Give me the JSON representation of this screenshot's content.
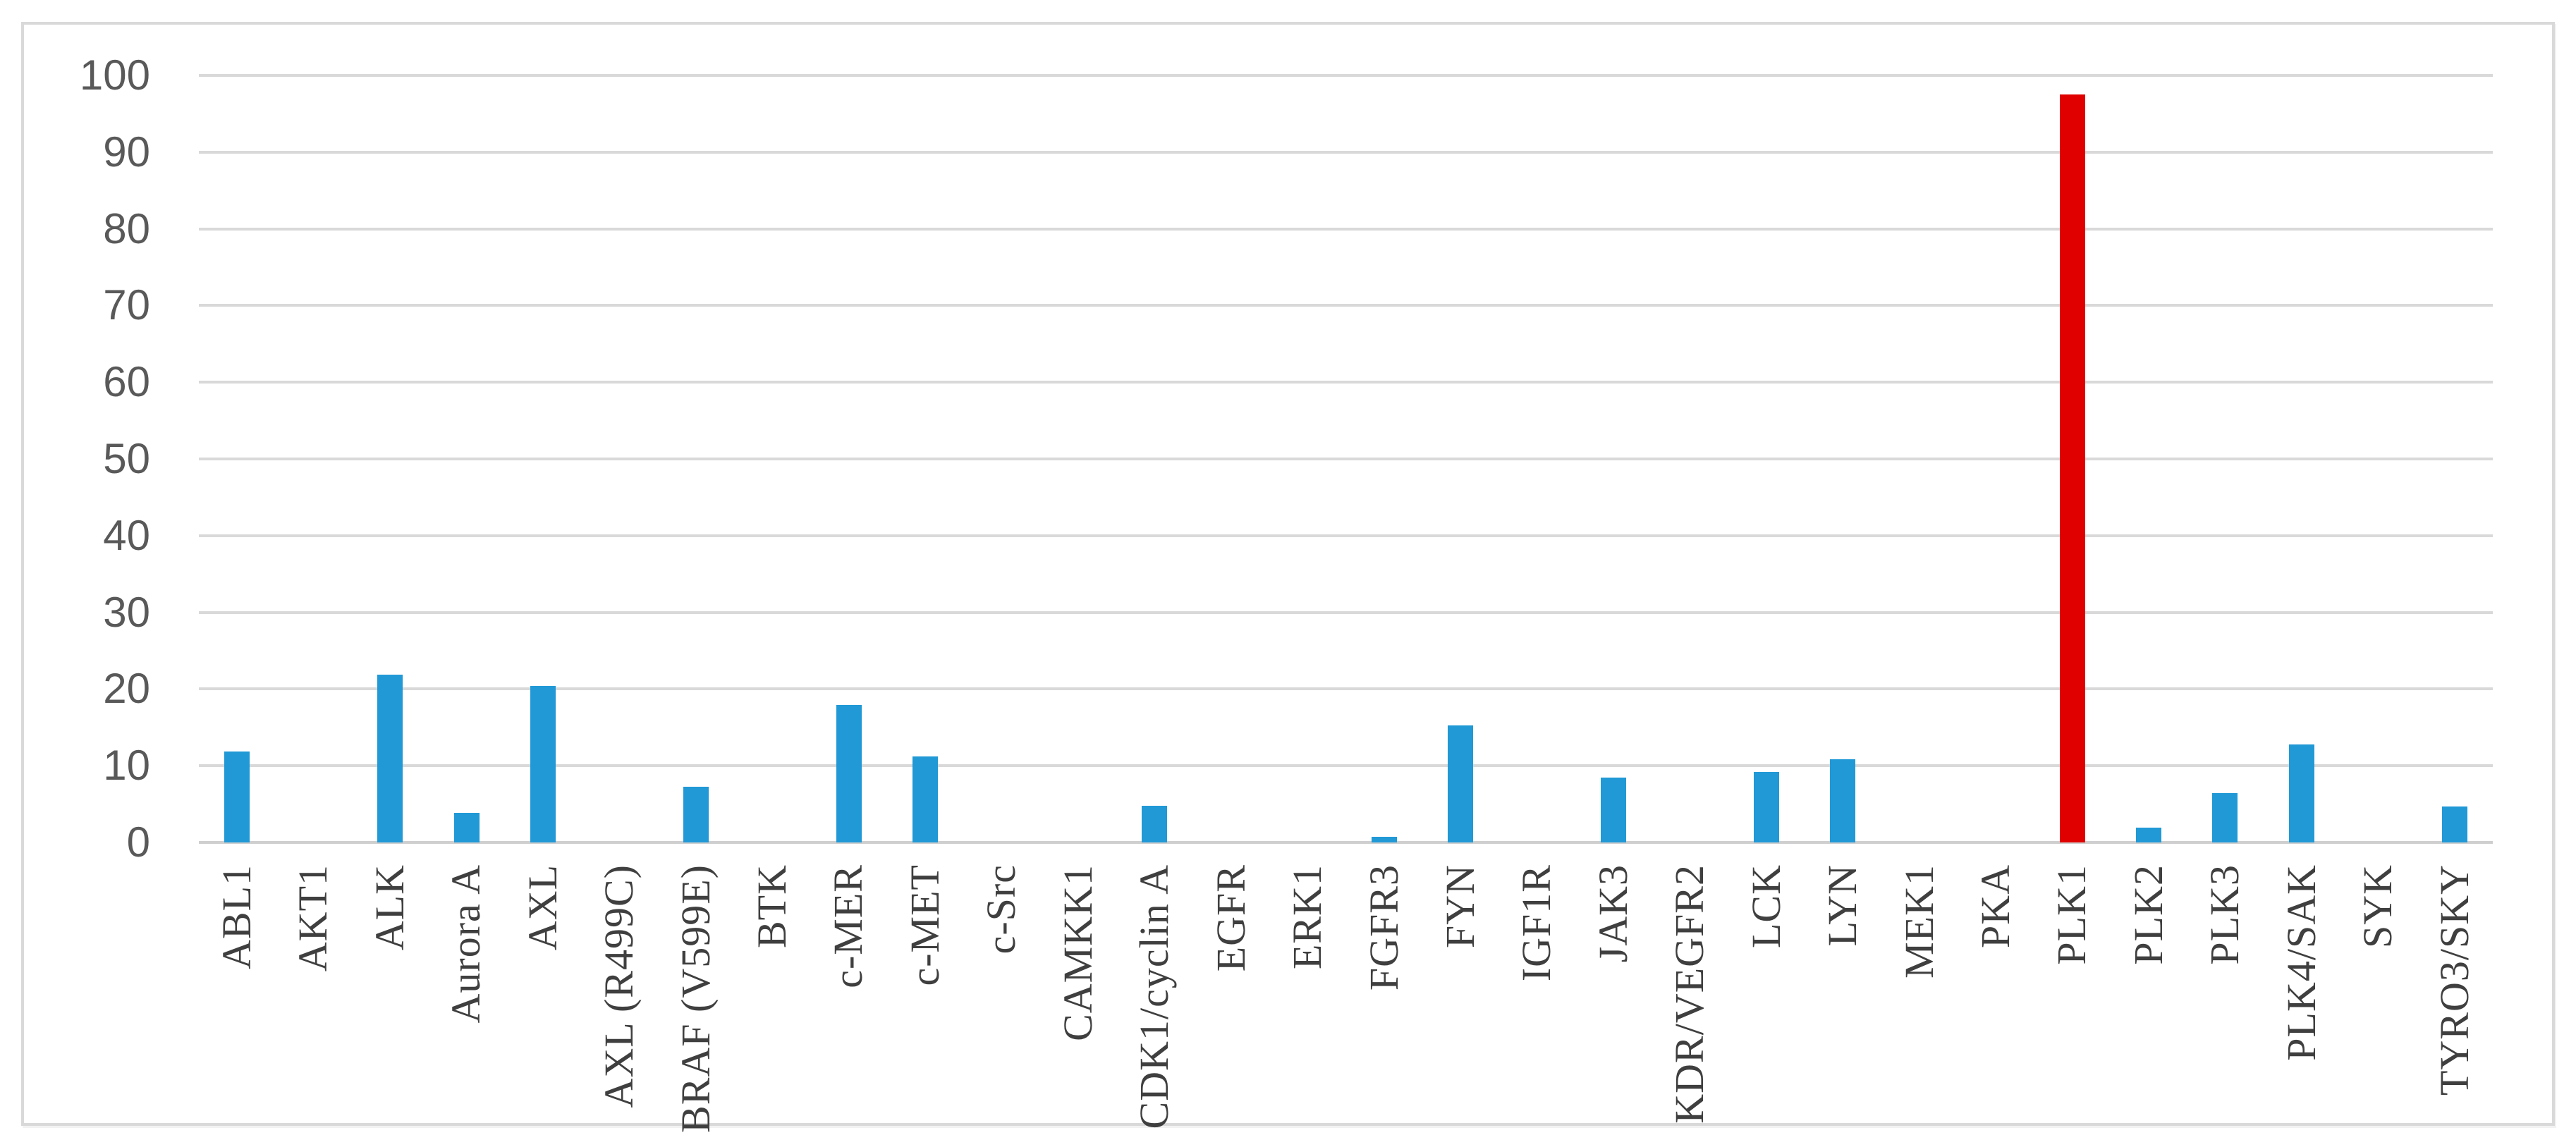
{
  "figure": {
    "background": "#ffffff",
    "border_color": "#d9d9d9"
  },
  "chart_data": {
    "type": "bar",
    "title": "",
    "xlabel": "",
    "ylabel": "",
    "categories": [
      "ABL1",
      "AKT1",
      "ALK",
      "Aurora A",
      "AXL",
      "AXL (R499C)",
      "BRAF (V599E)",
      "BTK",
      "c-MER",
      "c-MET",
      "c-Src",
      "CAMKK1",
      "CDK1/cyclin A",
      "EGFR",
      "ERK1",
      "FGFR3",
      "FYN",
      "IGF1R",
      "JAK3",
      "KDR/VEGFR2",
      "LCK",
      "LYN",
      "MEK1",
      "PKA",
      "PLK1",
      "PLK2",
      "PLK3",
      "PLK4/SAK",
      "SYK",
      "TYRO3/SKY"
    ],
    "values": [
      11.9,
      0,
      21.9,
      3.9,
      20.4,
      0,
      7.3,
      0,
      17.9,
      11.2,
      0,
      0,
      4.8,
      0,
      0,
      0.7,
      15.3,
      0,
      8.5,
      0,
      9.2,
      10.8,
      0,
      0,
      97.5,
      1.9,
      6.4,
      12.8,
      0,
      4.7
    ],
    "highlight_category": "PLK1",
    "bar_color": "#2099d6",
    "highlight_color": "#e00000",
    "y_ticks": [
      0,
      10,
      20,
      30,
      40,
      50,
      60,
      70,
      80,
      90,
      100
    ],
    "ylim": [
      0,
      100
    ],
    "grid": "horizontal",
    "gridline_color": "#d9d9d9",
    "axis_line_color": "#cfcfcf",
    "tick_label_color": "#595959",
    "category_label_color": "#3f3f3f",
    "legend_position": "none"
  }
}
